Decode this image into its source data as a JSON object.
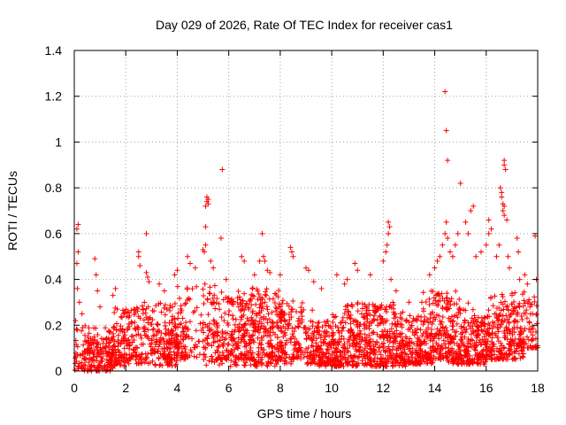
{
  "chart_data": {
    "type": "scatter",
    "title": "Day 029 of 2026, Rate Of TEC Index for receiver cas1",
    "xlabel": "GPS time / hours",
    "ylabel": "ROTI / TECUs",
    "xlim": [
      0,
      18
    ],
    "ylim": [
      0,
      1.4
    ],
    "x_ticks": [
      0,
      2,
      4,
      6,
      8,
      10,
      12,
      14,
      16,
      18
    ],
    "x_tick_labels": [
      "0",
      "2",
      "4",
      "6",
      "8",
      "10",
      "12",
      "14",
      "16",
      "18"
    ],
    "y_ticks": [
      0,
      0.2,
      0.4,
      0.6,
      0.8,
      1.0,
      1.2,
      1.4
    ],
    "y_tick_labels": [
      "0",
      "0.2",
      "0.4",
      "0.6",
      "0.8",
      "1",
      "1.2",
      "1.4"
    ],
    "grid": true,
    "marker": "+",
    "color": "#ff0000",
    "series": [
      {
        "name": "ROTI",
        "points": [
          [
            0.05,
            0.22
          ],
          [
            0.1,
            0.62
          ],
          [
            0.15,
            0.64
          ],
          [
            0.15,
            0.52
          ],
          [
            0.1,
            0.47
          ],
          [
            0.12,
            0.36
          ],
          [
            0.2,
            0.3
          ],
          [
            0.3,
            0.25
          ],
          [
            0.8,
            0.49
          ],
          [
            0.85,
            0.42
          ],
          [
            0.9,
            0.35
          ],
          [
            1.0,
            0.28
          ],
          [
            1.5,
            0.33
          ],
          [
            1.6,
            0.36
          ],
          [
            2.5,
            0.52
          ],
          [
            2.5,
            0.5
          ],
          [
            2.55,
            0.46
          ],
          [
            2.8,
            0.6
          ],
          [
            2.8,
            0.43
          ],
          [
            2.85,
            0.41
          ],
          [
            2.9,
            0.39
          ],
          [
            3.3,
            0.38
          ],
          [
            3.5,
            0.35
          ],
          [
            3.9,
            0.42
          ],
          [
            4.0,
            0.44
          ],
          [
            4.4,
            0.5
          ],
          [
            4.5,
            0.47
          ],
          [
            4.7,
            0.45
          ],
          [
            5.0,
            0.53
          ],
          [
            5.05,
            0.52
          ],
          [
            5.1,
            0.55
          ],
          [
            5.1,
            0.63
          ],
          [
            5.1,
            0.72
          ],
          [
            5.15,
            0.74
          ],
          [
            5.15,
            0.76
          ],
          [
            5.2,
            0.75
          ],
          [
            5.2,
            0.73
          ],
          [
            5.3,
            0.48
          ],
          [
            5.4,
            0.45
          ],
          [
            5.7,
            0.58
          ],
          [
            5.75,
            0.88
          ],
          [
            5.9,
            0.4
          ],
          [
            6.5,
            0.5
          ],
          [
            6.6,
            0.48
          ],
          [
            7.0,
            0.42
          ],
          [
            7.2,
            0.48
          ],
          [
            7.3,
            0.6
          ],
          [
            7.35,
            0.5
          ],
          [
            7.4,
            0.48
          ],
          [
            7.5,
            0.44
          ],
          [
            7.6,
            0.43
          ],
          [
            8.0,
            0.42
          ],
          [
            8.4,
            0.54
          ],
          [
            8.45,
            0.52
          ],
          [
            8.5,
            0.5
          ],
          [
            9.0,
            0.45
          ],
          [
            9.1,
            0.44
          ],
          [
            9.3,
            0.39
          ],
          [
            9.6,
            0.36
          ],
          [
            10.2,
            0.42
          ],
          [
            10.5,
            0.38
          ],
          [
            10.6,
            0.4
          ],
          [
            10.9,
            0.47
          ],
          [
            11.0,
            0.44
          ],
          [
            11.5,
            0.42
          ],
          [
            12.0,
            0.48
          ],
          [
            12.1,
            0.52
          ],
          [
            12.15,
            0.55
          ],
          [
            12.2,
            0.6
          ],
          [
            12.2,
            0.65
          ],
          [
            12.25,
            0.63
          ],
          [
            12.3,
            0.4
          ],
          [
            12.5,
            0.35
          ],
          [
            13.0,
            0.3
          ],
          [
            13.5,
            0.3
          ],
          [
            13.8,
            0.42
          ],
          [
            14.0,
            0.45
          ],
          [
            14.1,
            0.48
          ],
          [
            14.2,
            0.5
          ],
          [
            14.3,
            0.55
          ],
          [
            14.4,
            0.6
          ],
          [
            14.45,
            0.65
          ],
          [
            14.4,
            1.22
          ],
          [
            14.45,
            1.05
          ],
          [
            14.5,
            0.92
          ],
          [
            14.5,
            0.58
          ],
          [
            14.6,
            0.52
          ],
          [
            14.7,
            0.5
          ],
          [
            14.8,
            0.55
          ],
          [
            14.9,
            0.6
          ],
          [
            15.0,
            0.82
          ],
          [
            15.2,
            0.65
          ],
          [
            15.3,
            0.6
          ],
          [
            15.4,
            0.7
          ],
          [
            15.5,
            0.72
          ],
          [
            15.6,
            0.5
          ],
          [
            15.8,
            0.52
          ],
          [
            16.0,
            0.55
          ],
          [
            16.1,
            0.6
          ],
          [
            16.1,
            0.66
          ],
          [
            16.2,
            0.62
          ],
          [
            16.4,
            0.5
          ],
          [
            16.5,
            0.55
          ],
          [
            16.55,
            0.8
          ],
          [
            16.6,
            0.78
          ],
          [
            16.6,
            0.76
          ],
          [
            16.65,
            0.73
          ],
          [
            16.65,
            0.7
          ],
          [
            16.7,
            0.72
          ],
          [
            16.7,
            0.68
          ],
          [
            16.7,
            0.92
          ],
          [
            16.7,
            0.9
          ],
          [
            16.75,
            0.88
          ],
          [
            16.8,
            0.66
          ],
          [
            16.85,
            0.5
          ],
          [
            16.9,
            0.45
          ],
          [
            17.2,
            0.58
          ],
          [
            17.25,
            0.52
          ],
          [
            17.3,
            0.4
          ],
          [
            17.5,
            0.42
          ],
          [
            17.6,
            0.38
          ],
          [
            17.9,
            0.59
          ],
          [
            17.95,
            0.4
          ],
          [
            17.7,
            0.28
          ],
          [
            17.8,
            0.25
          ]
        ],
        "bands": [
          [
            0,
            1,
            0.0,
            0.2
          ],
          [
            0.5,
            1.5,
            0.0,
            0.15
          ],
          [
            1.0,
            2.0,
            0.02,
            0.2
          ],
          [
            1.5,
            3.0,
            0.03,
            0.28
          ],
          [
            2.0,
            3.5,
            0.05,
            0.3
          ],
          [
            3.0,
            4.0,
            0.02,
            0.22
          ],
          [
            3.5,
            4.5,
            0.05,
            0.3
          ],
          [
            4.0,
            5.5,
            0.05,
            0.38
          ],
          [
            5.0,
            6.5,
            0.02,
            0.35
          ],
          [
            5.5,
            7.0,
            0.05,
            0.33
          ],
          [
            6.0,
            7.5,
            0.05,
            0.35
          ],
          [
            6.5,
            8.0,
            0.02,
            0.38
          ],
          [
            7.0,
            8.5,
            0.03,
            0.32
          ],
          [
            7.5,
            9.0,
            0.05,
            0.3
          ],
          [
            8.0,
            9.5,
            0.05,
            0.28
          ],
          [
            9.0,
            10.0,
            0.03,
            0.22
          ],
          [
            9.5,
            10.5,
            0.02,
            0.18
          ],
          [
            10.0,
            11.0,
            0.02,
            0.25
          ],
          [
            10.5,
            11.5,
            0.03,
            0.3
          ],
          [
            11.0,
            12.0,
            0.02,
            0.28
          ],
          [
            11.5,
            12.5,
            0.02,
            0.3
          ],
          [
            12.0,
            13.0,
            0.02,
            0.28
          ],
          [
            12.5,
            13.5,
            0.03,
            0.25
          ],
          [
            13.0,
            14.0,
            0.03,
            0.25
          ],
          [
            13.5,
            14.5,
            0.05,
            0.35
          ],
          [
            14.0,
            15.0,
            0.05,
            0.35
          ],
          [
            14.5,
            15.5,
            0.03,
            0.3
          ],
          [
            15.0,
            16.0,
            0.03,
            0.22
          ],
          [
            15.5,
            16.5,
            0.05,
            0.25
          ],
          [
            16.0,
            17.0,
            0.05,
            0.35
          ],
          [
            16.5,
            17.5,
            0.05,
            0.3
          ],
          [
            17.0,
            18.0,
            0.1,
            0.35
          ]
        ]
      }
    ]
  }
}
